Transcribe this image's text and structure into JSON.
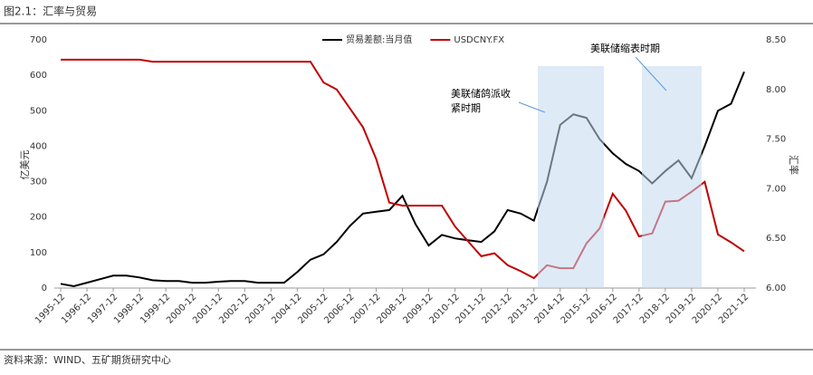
{
  "chart_data": {
    "type": "line",
    "title": "图2.1：汇率与贸易",
    "source": "资料来源：WIND、五矿期货研究中心",
    "ylabel": "亿美元",
    "y2label": "汇率",
    "annotations": [
      "美联储鸽派收",
      "紧时期",
      "美联储缩表时期"
    ],
    "categories": [
      "1995-12",
      null,
      "1996-12",
      null,
      "1997-12",
      null,
      "1998-12",
      null,
      "1999-12",
      null,
      "2000-12",
      null,
      "2001-12",
      null,
      "2002-12",
      null,
      "2003-12",
      null,
      "2004-12",
      null,
      "2005-12",
      null,
      "2006-12",
      null,
      "2007-12",
      null,
      "2008-12",
      null,
      "2009-12",
      null,
      "2010-12",
      null,
      "2011-12",
      null,
      "2012-12",
      null,
      "2013-12",
      null,
      "2014-12",
      null,
      "2015-12",
      null,
      "2016-12",
      null,
      "2017-12",
      null,
      "2018-12",
      null,
      "2019-12",
      null,
      "2020-12",
      null,
      "2021-12"
    ],
    "series": [
      {
        "name": "贸易差额:当月值",
        "color": "#000000",
        "values": [
          12,
          5,
          15,
          25,
          35,
          35,
          30,
          22,
          20,
          20,
          15,
          15,
          18,
          20,
          20,
          15,
          15,
          15,
          45,
          80,
          95,
          130,
          175,
          210,
          215,
          220,
          260,
          180,
          120,
          150,
          140,
          135,
          130,
          160,
          220,
          210,
          190,
          300,
          460,
          490,
          480,
          420,
          380,
          350,
          330,
          295,
          330,
          360,
          310,
          400,
          500,
          520,
          610
        ]
      },
      {
        "name": "USDCNY.FX",
        "color": "#c00000",
        "axis": "y2",
        "values": [
          8.3,
          8.3,
          8.3,
          8.3,
          8.3,
          8.3,
          8.3,
          8.28,
          8.28,
          8.28,
          8.28,
          8.28,
          8.28,
          8.28,
          8.28,
          8.28,
          8.28,
          8.28,
          8.28,
          8.28,
          8.07,
          8.0,
          7.81,
          7.62,
          7.3,
          6.86,
          6.83,
          6.83,
          6.83,
          6.83,
          6.62,
          6.47,
          6.32,
          6.35,
          6.23,
          6.17,
          6.1,
          6.23,
          6.2,
          6.2,
          6.45,
          6.6,
          6.95,
          6.78,
          6.52,
          6.55,
          6.87,
          6.88,
          6.97,
          7.07,
          6.54,
          6.46,
          6.37
        ]
      }
    ],
    "ylim": [
      0,
      700
    ],
    "yticks": [
      0,
      100,
      200,
      300,
      400,
      500,
      600,
      700
    ],
    "y2lim": [
      6,
      8.5
    ],
    "y2ticks": [
      {
        "value": 6,
        "label": "6.00"
      },
      {
        "value": 6.5,
        "label": "6.50"
      },
      {
        "value": 7,
        "label": "7.00"
      },
      {
        "value": 7.5,
        "label": "7.50"
      },
      {
        "value": 8,
        "label": "8.00"
      },
      {
        "value": 8.5,
        "label": "8.50"
      }
    ],
    "legend": "top"
  }
}
